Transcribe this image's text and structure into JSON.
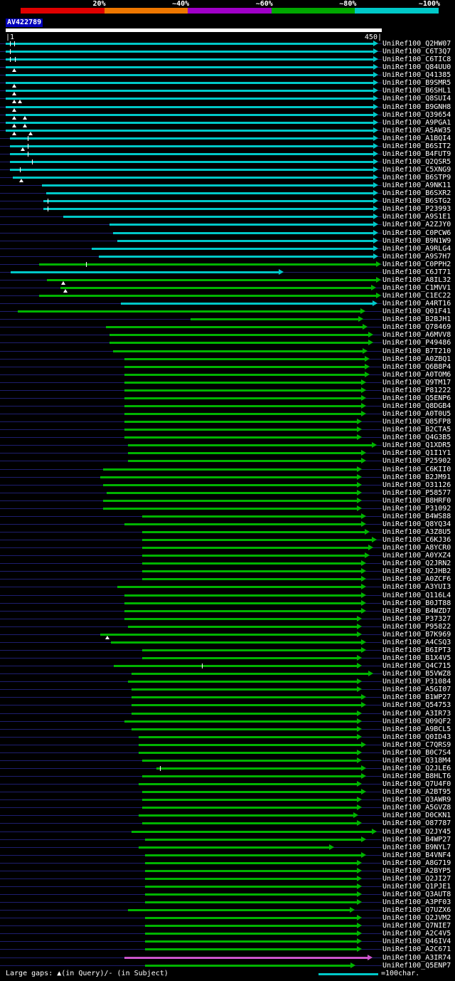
{
  "key": {
    "labels": [
      "20%",
      "~40%",
      "~60%",
      "~80%",
      "~100%"
    ],
    "colors": [
      "#e00000",
      "#ee7700",
      "#a000c8",
      "#00a800",
      "#00c8c8"
    ]
  },
  "query": {
    "name": "AV422789",
    "ruler_start": "|1",
    "ruler_end": "450|"
  },
  "footer": {
    "gaps_legend": "Large gaps: ▲(in Query)/- (in Subject)",
    "scale_label": "=100char."
  },
  "colors": {
    "background": "#000000",
    "baseline": "#1e1e6e",
    "cyan": "#00c8c8",
    "green": "#00b400",
    "magenta": "#cc55cc",
    "text": "#ffffff",
    "query_bar": "#ffffff",
    "query_label_bg": "#0000bb"
  },
  "chart_data": {
    "type": "bar",
    "orientation": "horizontal",
    "query": "AV422789",
    "x_axis": {
      "label": "query position",
      "min": 1,
      "max": 450
    },
    "legend": {
      "20%": "red",
      "~40%": "orange",
      "~60%": "magenta",
      "~80%": "green",
      "~100%": "cyan"
    },
    "hits": [
      {
        "label": "UniRef100_Q2HW07",
        "color": "cyan",
        "start": 1,
        "end": 452,
        "sgaps": [
          6,
          11
        ]
      },
      {
        "label": "UniRef100_C6T3Q7",
        "color": "cyan",
        "start": 1,
        "end": 452,
        "sgaps": [
          6
        ]
      },
      {
        "label": "UniRef100_C6TIC8",
        "color": "cyan",
        "start": 1,
        "end": 452,
        "sgaps": [
          6,
          12
        ]
      },
      {
        "label": "UniRef100_Q84UU0",
        "color": "cyan",
        "start": 1,
        "end": 452,
        "qgaps": [
          11
        ]
      },
      {
        "label": "UniRef100_Q41385",
        "color": "cyan",
        "start": 1,
        "end": 452
      },
      {
        "label": "UniRef100_B9SMR5",
        "color": "cyan",
        "start": 1,
        "end": 452,
        "qgaps": [
          11
        ]
      },
      {
        "label": "UniRef100_B6SHL1",
        "color": "cyan",
        "start": 1,
        "end": 452,
        "qgaps": [
          11
        ]
      },
      {
        "label": "UniRef100_Q8SUI4",
        "color": "cyan",
        "start": 1,
        "end": 452,
        "qgaps": [
          11,
          18
        ]
      },
      {
        "label": "UniRef100_B9GNH8",
        "color": "cyan",
        "start": 1,
        "end": 452,
        "qgaps": [
          11
        ]
      },
      {
        "label": "UniRef100_Q39654",
        "color": "cyan",
        "start": 1,
        "end": 452,
        "qgaps": [
          11,
          24
        ]
      },
      {
        "label": "UniRef100_A9PGA1",
        "color": "cyan",
        "start": 1,
        "end": 452,
        "qgaps": [
          11,
          24
        ]
      },
      {
        "label": "UniRef100_A5AW35",
        "color": "cyan",
        "start": 1,
        "end": 452,
        "qgaps": [
          11,
          31
        ]
      },
      {
        "label": "UniRef100_A1BQI4",
        "color": "cyan",
        "start": 6,
        "end": 452,
        "sgaps": [
          28
        ]
      },
      {
        "label": "UniRef100_B6SIT2",
        "color": "cyan",
        "start": 6,
        "end": 452,
        "qgaps": [
          22
        ],
        "sgaps": [
          28
        ]
      },
      {
        "label": "UniRef100_B4FUT9",
        "color": "cyan",
        "start": 6,
        "end": 452,
        "sgaps": [
          28
        ]
      },
      {
        "label": "UniRef100_Q2QSR5",
        "color": "cyan",
        "start": 6,
        "end": 452,
        "sgaps": [
          33
        ]
      },
      {
        "label": "UniRef100_C5XNG9",
        "color": "cyan",
        "start": 6,
        "end": 452,
        "sgaps": [
          18
        ]
      },
      {
        "label": "UniRef100_B6STP9",
        "color": "cyan",
        "start": 10,
        "end": 452,
        "qgaps": [
          20
        ]
      },
      {
        "label": "UniRef100_A9NK11",
        "color": "cyan",
        "start": 45,
        "end": 452
      },
      {
        "label": "UniRef100_B6SXR2",
        "color": "cyan",
        "start": 50,
        "end": 452
      },
      {
        "label": "UniRef100_B6STG2",
        "color": "cyan",
        "start": 47,
        "end": 452,
        "sgaps": [
          52
        ]
      },
      {
        "label": "UniRef100_P23993",
        "color": "cyan",
        "start": 47,
        "end": 452,
        "sgaps": [
          52
        ]
      },
      {
        "label": "UniRef100_A9S1E1",
        "color": "cyan",
        "start": 71,
        "end": 452
      },
      {
        "label": "UniRef100_A2ZJY0",
        "color": "cyan",
        "start": 127,
        "end": 452
      },
      {
        "label": "UniRef100_C0PCW6",
        "color": "cyan",
        "start": 131,
        "end": 452
      },
      {
        "label": "UniRef100_B9N1W9",
        "color": "cyan",
        "start": 136,
        "end": 452
      },
      {
        "label": "UniRef100_A9RLG4",
        "color": "cyan",
        "start": 105,
        "end": 452
      },
      {
        "label": "UniRef100_A9S7H7",
        "color": "cyan",
        "start": 114,
        "end": 452
      },
      {
        "label": "UniRef100_C0PPH2",
        "color": "green",
        "start": 41,
        "end": 455,
        "sgaps": [
          98
        ]
      },
      {
        "label": "UniRef100_C6JT71",
        "color": "cyan",
        "start": 7,
        "end": 337
      },
      {
        "label": "UniRef100_A8IL32",
        "color": "green",
        "start": 51,
        "end": 455,
        "qgaps": [
          71
        ]
      },
      {
        "label": "UniRef100_C1MVV1",
        "color": "green",
        "start": 67,
        "end": 449,
        "qgaps": [
          73
        ]
      },
      {
        "label": "UniRef100_C1EC22",
        "color": "green",
        "start": 41,
        "end": 455
      },
      {
        "label": "UniRef100_A4RT16",
        "color": "cyan",
        "start": 140,
        "end": 451
      },
      {
        "label": "UniRef100_Q01F41",
        "color": "green",
        "start": 16,
        "end": 436
      },
      {
        "label": "UniRef100_B2BJH1",
        "color": "green",
        "start": 225,
        "end": 434
      },
      {
        "label": "UniRef100_Q78469",
        "color": "green",
        "start": 122,
        "end": 439
      },
      {
        "label": "UniRef100_A6MVV8",
        "color": "green",
        "start": 127,
        "end": 446
      },
      {
        "label": "UniRef100_P49486",
        "color": "green",
        "start": 127,
        "end": 446
      },
      {
        "label": "UniRef100_B7T210",
        "color": "green",
        "start": 131,
        "end": 439
      },
      {
        "label": "UniRef100_A0ZBQ1",
        "color": "green",
        "start": 145,
        "end": 441
      },
      {
        "label": "UniRef100_Q6B8P4",
        "color": "green",
        "start": 145,
        "end": 441
      },
      {
        "label": "UniRef100_A0TOM6",
        "color": "green",
        "start": 145,
        "end": 441
      },
      {
        "label": "UniRef100_Q9TM17",
        "color": "green",
        "start": 145,
        "end": 437
      },
      {
        "label": "UniRef100_P81222",
        "color": "green",
        "start": 145,
        "end": 437
      },
      {
        "label": "UniRef100_Q5ENP6",
        "color": "green",
        "start": 145,
        "end": 437
      },
      {
        "label": "UniRef100_Q8DGB4",
        "color": "green",
        "start": 145,
        "end": 437
      },
      {
        "label": "UniRef100_A0T0U5",
        "color": "green",
        "start": 145,
        "end": 437
      },
      {
        "label": "UniRef100_Q85FP8",
        "color": "green",
        "start": 145,
        "end": 432
      },
      {
        "label": "UniRef100_B2CTA5",
        "color": "green",
        "start": 145,
        "end": 432
      },
      {
        "label": "UniRef100_Q4G3B5",
        "color": "green",
        "start": 145,
        "end": 432
      },
      {
        "label": "UniRef100_Q1XDR5",
        "color": "green",
        "start": 149,
        "end": 450
      },
      {
        "label": "UniRef100_Q1I1Y1",
        "color": "green",
        "start": 149,
        "end": 437
      },
      {
        "label": "UniRef100_P25902",
        "color": "green",
        "start": 149,
        "end": 437
      },
      {
        "label": "UniRef100_C6KII0",
        "color": "green",
        "start": 119,
        "end": 432
      },
      {
        "label": "UniRef100_B2JM91",
        "color": "green",
        "start": 115,
        "end": 432
      },
      {
        "label": "UniRef100_O31126",
        "color": "green",
        "start": 119,
        "end": 432
      },
      {
        "label": "UniRef100_P58577",
        "color": "green",
        "start": 123,
        "end": 432
      },
      {
        "label": "UniRef100_B8HRF0",
        "color": "green",
        "start": 119,
        "end": 432
      },
      {
        "label": "UniRef100_P31092",
        "color": "green",
        "start": 119,
        "end": 432
      },
      {
        "label": "UniRef100_B4WS88",
        "color": "green",
        "start": 166,
        "end": 437
      },
      {
        "label": "UniRef100_Q8YQ34",
        "color": "green",
        "start": 145,
        "end": 437
      },
      {
        "label": "UniRef100_A3Z8U5",
        "color": "green",
        "start": 166,
        "end": 441
      },
      {
        "label": "UniRef100_C6KJ36",
        "color": "green",
        "start": 166,
        "end": 450
      },
      {
        "label": "UniRef100_A8YCR0",
        "color": "green",
        "start": 166,
        "end": 446
      },
      {
        "label": "UniRef100_A0YXZ4",
        "color": "green",
        "start": 166,
        "end": 441
      },
      {
        "label": "UniRef100_Q2JRN2",
        "color": "green",
        "start": 166,
        "end": 437
      },
      {
        "label": "UniRef100_Q2JHB2",
        "color": "green",
        "start": 166,
        "end": 437
      },
      {
        "label": "UniRef100_A0ZCF6",
        "color": "green",
        "start": 166,
        "end": 437
      },
      {
        "label": "UniRef100_A3YUI3",
        "color": "green",
        "start": 136,
        "end": 437
      },
      {
        "label": "UniRef100_Q116L4",
        "color": "green",
        "start": 145,
        "end": 437
      },
      {
        "label": "UniRef100_B0JT88",
        "color": "green",
        "start": 145,
        "end": 437
      },
      {
        "label": "UniRef100_B4WZD7",
        "color": "green",
        "start": 145,
        "end": 437
      },
      {
        "label": "UniRef100_P37327",
        "color": "green",
        "start": 145,
        "end": 432
      },
      {
        "label": "UniRef100_P95822",
        "color": "green",
        "start": 149,
        "end": 432
      },
      {
        "label": "UniRef100_B7K969",
        "color": "green",
        "start": 115,
        "end": 432,
        "qgaps": [
          124
        ]
      },
      {
        "label": "UniRef100_A4CSQ3",
        "color": "green",
        "start": 128,
        "end": 437
      },
      {
        "label": "UniRef100_B6IPT3",
        "color": "green",
        "start": 166,
        "end": 437
      },
      {
        "label": "UniRef100_B1X4V5",
        "color": "green",
        "start": 166,
        "end": 432
      },
      {
        "label": "UniRef100_Q4C715",
        "color": "green",
        "start": 132,
        "end": 432,
        "sgaps": [
          238
        ]
      },
      {
        "label": "UniRef100_B5VWZ8",
        "color": "green",
        "start": 153,
        "end": 446
      },
      {
        "label": "UniRef100_P31084",
        "color": "green",
        "start": 149,
        "end": 432
      },
      {
        "label": "UniRef100_A5GI07",
        "color": "green",
        "start": 153,
        "end": 432
      },
      {
        "label": "UniRef100_B1WP27",
        "color": "green",
        "start": 153,
        "end": 437
      },
      {
        "label": "UniRef100_Q54753",
        "color": "green",
        "start": 153,
        "end": 437
      },
      {
        "label": "UniRef100_A3IR73",
        "color": "green",
        "start": 153,
        "end": 432
      },
      {
        "label": "UniRef100_Q09QF2",
        "color": "green",
        "start": 145,
        "end": 432
      },
      {
        "label": "UniRef100_A9BCL5",
        "color": "green",
        "start": 153,
        "end": 432
      },
      {
        "label": "UniRef100_Q0ID43",
        "color": "green",
        "start": 162,
        "end": 432
      },
      {
        "label": "UniRef100_C7QRS9",
        "color": "green",
        "start": 162,
        "end": 437
      },
      {
        "label": "UniRef100_B0C7S4",
        "color": "green",
        "start": 162,
        "end": 432
      },
      {
        "label": "UniRef100_Q318M4",
        "color": "green",
        "start": 166,
        "end": 432
      },
      {
        "label": "UniRef100_Q2JLE6",
        "color": "green",
        "start": 183,
        "end": 437,
        "sgaps": [
          188
        ]
      },
      {
        "label": "UniRef100_B8HLT6",
        "color": "green",
        "start": 166,
        "end": 437
      },
      {
        "label": "UniRef100_Q7U4F0",
        "color": "green",
        "start": 162,
        "end": 432
      },
      {
        "label": "UniRef100_A2BT95",
        "color": "green",
        "start": 166,
        "end": 437
      },
      {
        "label": "UniRef100_Q3AWR9",
        "color": "green",
        "start": 166,
        "end": 432
      },
      {
        "label": "UniRef100_A5GVZ8",
        "color": "green",
        "start": 166,
        "end": 432
      },
      {
        "label": "UniRef100_D0CKN1",
        "color": "green",
        "start": 162,
        "end": 428
      },
      {
        "label": "UniRef100_O87787",
        "color": "green",
        "start": 166,
        "end": 432
      },
      {
        "label": "UniRef100_Q2JY45",
        "color": "green",
        "start": 153,
        "end": 450
      },
      {
        "label": "UniRef100_B4WP27",
        "color": "green",
        "start": 170,
        "end": 437
      },
      {
        "label": "UniRef100_B9NYL7",
        "color": "green",
        "start": 162,
        "end": 398
      },
      {
        "label": "UniRef100_B4VNF4",
        "color": "green",
        "start": 170,
        "end": 437
      },
      {
        "label": "UniRef100_A8G719",
        "color": "green",
        "start": 170,
        "end": 432
      },
      {
        "label": "UniRef100_A2BYP5",
        "color": "green",
        "start": 170,
        "end": 432
      },
      {
        "label": "UniRef100_Q2JI27",
        "color": "green",
        "start": 170,
        "end": 432
      },
      {
        "label": "UniRef100_Q1PJE1",
        "color": "green",
        "start": 170,
        "end": 432
      },
      {
        "label": "UniRef100_Q3AUT8",
        "color": "green",
        "start": 170,
        "end": 432
      },
      {
        "label": "UniRef100_A3PF03",
        "color": "green",
        "start": 170,
        "end": 432
      },
      {
        "label": "UniRef100_Q7UZX6",
        "color": "green",
        "start": 149,
        "end": 423
      },
      {
        "label": "UniRef100_Q2JVM2",
        "color": "green",
        "start": 170,
        "end": 432
      },
      {
        "label": "UniRef100_Q7NIE7",
        "color": "green",
        "start": 170,
        "end": 432
      },
      {
        "label": "UniRef100_A2C4V5",
        "color": "green",
        "start": 170,
        "end": 432
      },
      {
        "label": "UniRef100_Q46IV4",
        "color": "green",
        "start": 170,
        "end": 432
      },
      {
        "label": "UniRef100_A2C671",
        "color": "green",
        "start": 170,
        "end": 432
      },
      {
        "label": "UniRef100_A3IR74",
        "color": "magenta",
        "start": 145,
        "end": 445
      },
      {
        "label": "UniRef100_Q5ENP7",
        "color": "green",
        "start": 170,
        "end": 424
      }
    ]
  }
}
